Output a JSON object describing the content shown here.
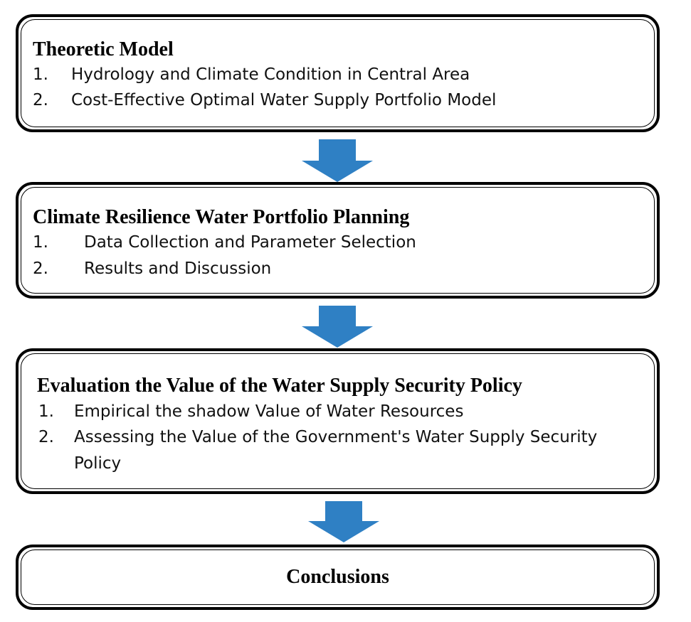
{
  "steps": [
    {
      "title": "Theoretic Model",
      "items": [
        {
          "num": "1.",
          "text": "Hydrology and Climate Condition in Central Area"
        },
        {
          "num": "2.",
          "text": "Cost-Effective Optimal Water Supply Portfolio Model"
        }
      ]
    },
    {
      "title": "Climate Resilience Water Portfolio Planning",
      "items": [
        {
          "num": "1.",
          "text": "Data Collection and Parameter Selection"
        },
        {
          "num": "2.",
          "text": "Results and Discussion"
        }
      ]
    },
    {
      "title": "Evaluation the Value of the Water Supply Security Policy",
      "items": [
        {
          "num": "1.",
          "text": "Empirical the shadow Value of Water Resources"
        },
        {
          "num": "2.",
          "text": "Assessing the Value of the Government's Water Supply Security Policy"
        }
      ]
    },
    {
      "title": "Conclusions",
      "items": []
    }
  ],
  "colors": {
    "arrow": "#2f80c4",
    "border": "#000000"
  }
}
